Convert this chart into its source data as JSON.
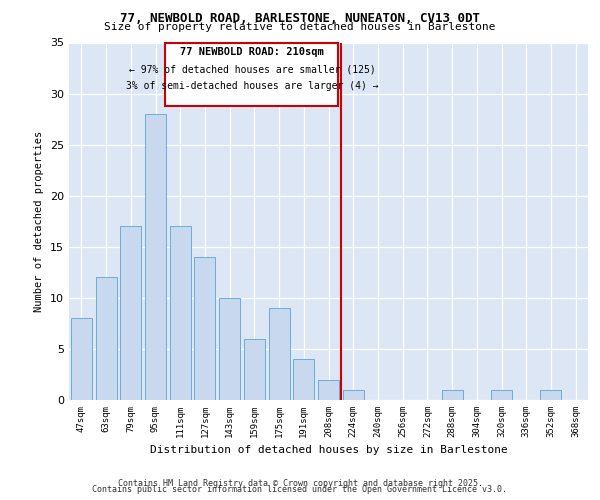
{
  "title1": "77, NEWBOLD ROAD, BARLESTONE, NUNEATON, CV13 0DT",
  "title2": "Size of property relative to detached houses in Barlestone",
  "xlabel": "Distribution of detached houses by size in Barlestone",
  "ylabel": "Number of detached properties",
  "categories": [
    "47sqm",
    "63sqm",
    "79sqm",
    "95sqm",
    "111sqm",
    "127sqm",
    "143sqm",
    "159sqm",
    "175sqm",
    "191sqm",
    "208sqm",
    "224sqm",
    "240sqm",
    "256sqm",
    "272sqm",
    "288sqm",
    "304sqm",
    "320sqm",
    "336sqm",
    "352sqm",
    "368sqm"
  ],
  "values": [
    8,
    12,
    17,
    28,
    17,
    14,
    10,
    6,
    9,
    4,
    2,
    1,
    0,
    0,
    0,
    1,
    0,
    1,
    0,
    1,
    0
  ],
  "bar_color": "#c8d9ef",
  "bar_edge_color": "#6aadd5",
  "vline_color": "#cc0000",
  "annotation_title": "77 NEWBOLD ROAD: 210sqm",
  "annotation_line1": "← 97% of detached houses are smaller (125)",
  "annotation_line2": "3% of semi-detached houses are larger (4) →",
  "annotation_box_color": "#cc0000",
  "ylim": [
    0,
    35
  ],
  "yticks": [
    0,
    5,
    10,
    15,
    20,
    25,
    30,
    35
  ],
  "background_color": "#dce6f5",
  "footer1": "Contains HM Land Registry data © Crown copyright and database right 2025.",
  "footer2": "Contains public sector information licensed under the Open Government Licence v3.0."
}
